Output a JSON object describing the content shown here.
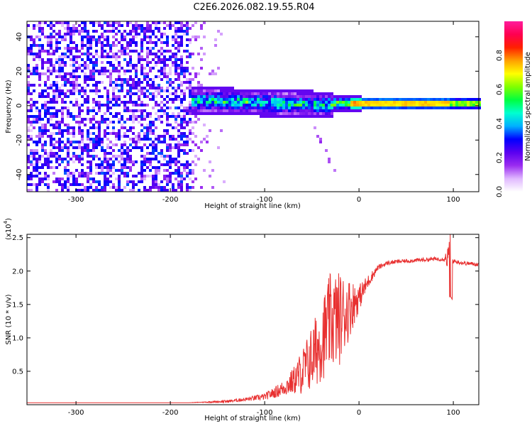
{
  "title": "C2E6.2026.082.19.55.R04",
  "chart_data": [
    {
      "type": "heatmap",
      "title": "C2E6.2026.082.19.55.R04",
      "xlabel": "Height of straight line (km)",
      "ylabel": "Frequency (Hz)",
      "xlim": [
        -352,
        127
      ],
      "ylim": [
        -50,
        49
      ],
      "x_ticks": [
        -300,
        -200,
        -100,
        0,
        100
      ],
      "x_tick_labels": [
        "-300",
        "-200",
        "-100",
        "0",
        "100"
      ],
      "y_ticks": [
        -40,
        -20,
        0,
        20,
        40
      ],
      "y_tick_labels": [
        "-40",
        "-20",
        "0",
        "20",
        "40"
      ],
      "colorbar": {
        "label": "Normalized spectral amplitude",
        "ticks": [
          0.0,
          0.2,
          0.4,
          0.6,
          0.8
        ],
        "tick_labels": [
          "0.0",
          "0.2",
          "0.4",
          "0.6",
          "0.8"
        ],
        "range": [
          0,
          1
        ],
        "colors": [
          "#ffffff",
          "#e0b8ff",
          "#9a2cf0",
          "#5a00f0",
          "#0000ff",
          "#00b0ff",
          "#00ffd0",
          "#00ff40",
          "#80ff00",
          "#ffff00",
          "#ffa000",
          "#ff2000",
          "#ff0050",
          "#ff1c9c"
        ]
      },
      "regions": {
        "noise_x_range": [
          -352,
          -180
        ],
        "noise_amplitude_range": [
          0.05,
          0.35
        ],
        "band_start_x": -180,
        "band_center_freq_hz": 2,
        "band_peak_amplitude": 0.95,
        "band_peak_x_range": [
          -10,
          95
        ],
        "stray_trail": {
          "x": [
            -55,
            -25
          ],
          "freq_hz": [
            -5,
            -40
          ]
        }
      }
    },
    {
      "type": "line",
      "xlabel": "Height of straight line (km)",
      "ylabel": "SNR (10 * v/v)",
      "y_scale_label": "(x10",
      "y_scale_exponent": "4",
      "line_color": "#e83030",
      "xlim": [
        -352,
        127
      ],
      "ylim": [
        0,
        2.55
      ],
      "x_ticks": [
        -300,
        -200,
        -100,
        0,
        100
      ],
      "x_tick_labels": [
        "-300",
        "-200",
        "-100",
        "0",
        "100"
      ],
      "y_ticks": [
        0.5,
        1.0,
        1.5,
        2.0,
        2.5
      ],
      "y_tick_labels": [
        "0.5",
        "1.0",
        "1.5",
        "2.0",
        "2.5"
      ],
      "series": [
        {
          "name": "SNR",
          "x": [
            -352,
            -250,
            -180,
            -160,
            -140,
            -120,
            -100,
            -90,
            -80,
            -70,
            -60,
            -50,
            -40,
            -30,
            -20,
            -10,
            0,
            10,
            20,
            30,
            40,
            50,
            60,
            70,
            80,
            90,
            97,
            100,
            110,
            127
          ],
          "y": [
            0.03,
            0.03,
            0.03,
            0.04,
            0.05,
            0.08,
            0.12,
            0.18,
            0.25,
            0.35,
            0.5,
            0.7,
            0.95,
            1.25,
            1.3,
            1.45,
            1.6,
            1.85,
            2.05,
            2.12,
            2.14,
            2.15,
            2.16,
            2.17,
            2.18,
            2.18,
            2.22,
            2.15,
            2.12,
            2.1
          ],
          "noise_envelope": [
            0,
            0,
            0,
            0.01,
            0.02,
            0.03,
            0.05,
            0.08,
            0.12,
            0.2,
            0.35,
            0.5,
            0.6,
            0.75,
            0.7,
            0.45,
            0.2,
            0.1,
            0.04,
            0.03,
            0.03,
            0.03,
            0.03,
            0.03,
            0.03,
            0.03,
            0.3,
            0.03,
            0.03,
            0.03
          ]
        }
      ]
    }
  ]
}
